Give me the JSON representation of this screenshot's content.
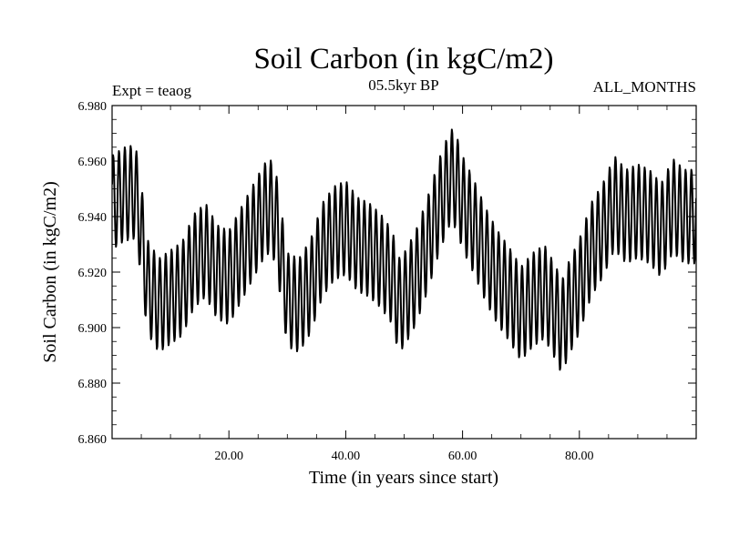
{
  "chart_data": {
    "type": "line",
    "title": "Soil Carbon (in kgC/m2)",
    "subtitle": "05.5kyr BP",
    "experiment_label": "Expt = teaog",
    "period_label": "ALL_MONTHS",
    "xlabel": "Time (in years since start)",
    "ylabel": "Soil Carbon (in kgC/m2)",
    "xlim": [
      0,
      100
    ],
    "ylim": [
      6.86,
      6.98
    ],
    "x_ticks": [
      20,
      40,
      60,
      80
    ],
    "x_tick_labels": [
      "20.00",
      "40.00",
      "60.00",
      "80.00"
    ],
    "y_ticks": [
      6.86,
      6.88,
      6.9,
      6.92,
      6.94,
      6.96,
      6.98
    ],
    "y_tick_labels": [
      "6.860",
      "6.880",
      "6.900",
      "6.920",
      "6.940",
      "6.960",
      "6.980"
    ],
    "grid": false,
    "monthly_resolution": 12,
    "annual_cycle_amplitude": 0.017,
    "series": [
      {
        "name": "Soil Carbon",
        "color": "#000000",
        "annual_mean_years": [
          0,
          2,
          4,
          5,
          6,
          8,
          10,
          12,
          14,
          16,
          18,
          20,
          22,
          24,
          26,
          27,
          28,
          29,
          30,
          32,
          34,
          36,
          38,
          40,
          42,
          44,
          46,
          48,
          49,
          50,
          52,
          54,
          56,
          58,
          59,
          60,
          62,
          64,
          66,
          68,
          70,
          72,
          74,
          76,
          77,
          78,
          80,
          82,
          84,
          86,
          88,
          90,
          92,
          94,
          96,
          98,
          100
        ],
        "annual_mean_values": [
          6.945,
          6.948,
          6.949,
          6.935,
          6.915,
          6.908,
          6.911,
          6.914,
          6.924,
          6.928,
          6.92,
          6.918,
          6.926,
          6.934,
          6.942,
          6.944,
          6.94,
          6.925,
          6.91,
          6.908,
          6.915,
          6.928,
          6.934,
          6.936,
          6.93,
          6.928,
          6.924,
          6.918,
          6.908,
          6.91,
          6.918,
          6.93,
          6.944,
          6.955,
          6.952,
          6.945,
          6.936,
          6.926,
          6.918,
          6.912,
          6.905,
          6.91,
          6.913,
          6.905,
          6.9,
          6.906,
          6.915,
          6.928,
          6.935,
          6.945,
          6.94,
          6.942,
          6.94,
          6.935,
          6.944,
          6.94,
          6.94
        ]
      }
    ]
  }
}
